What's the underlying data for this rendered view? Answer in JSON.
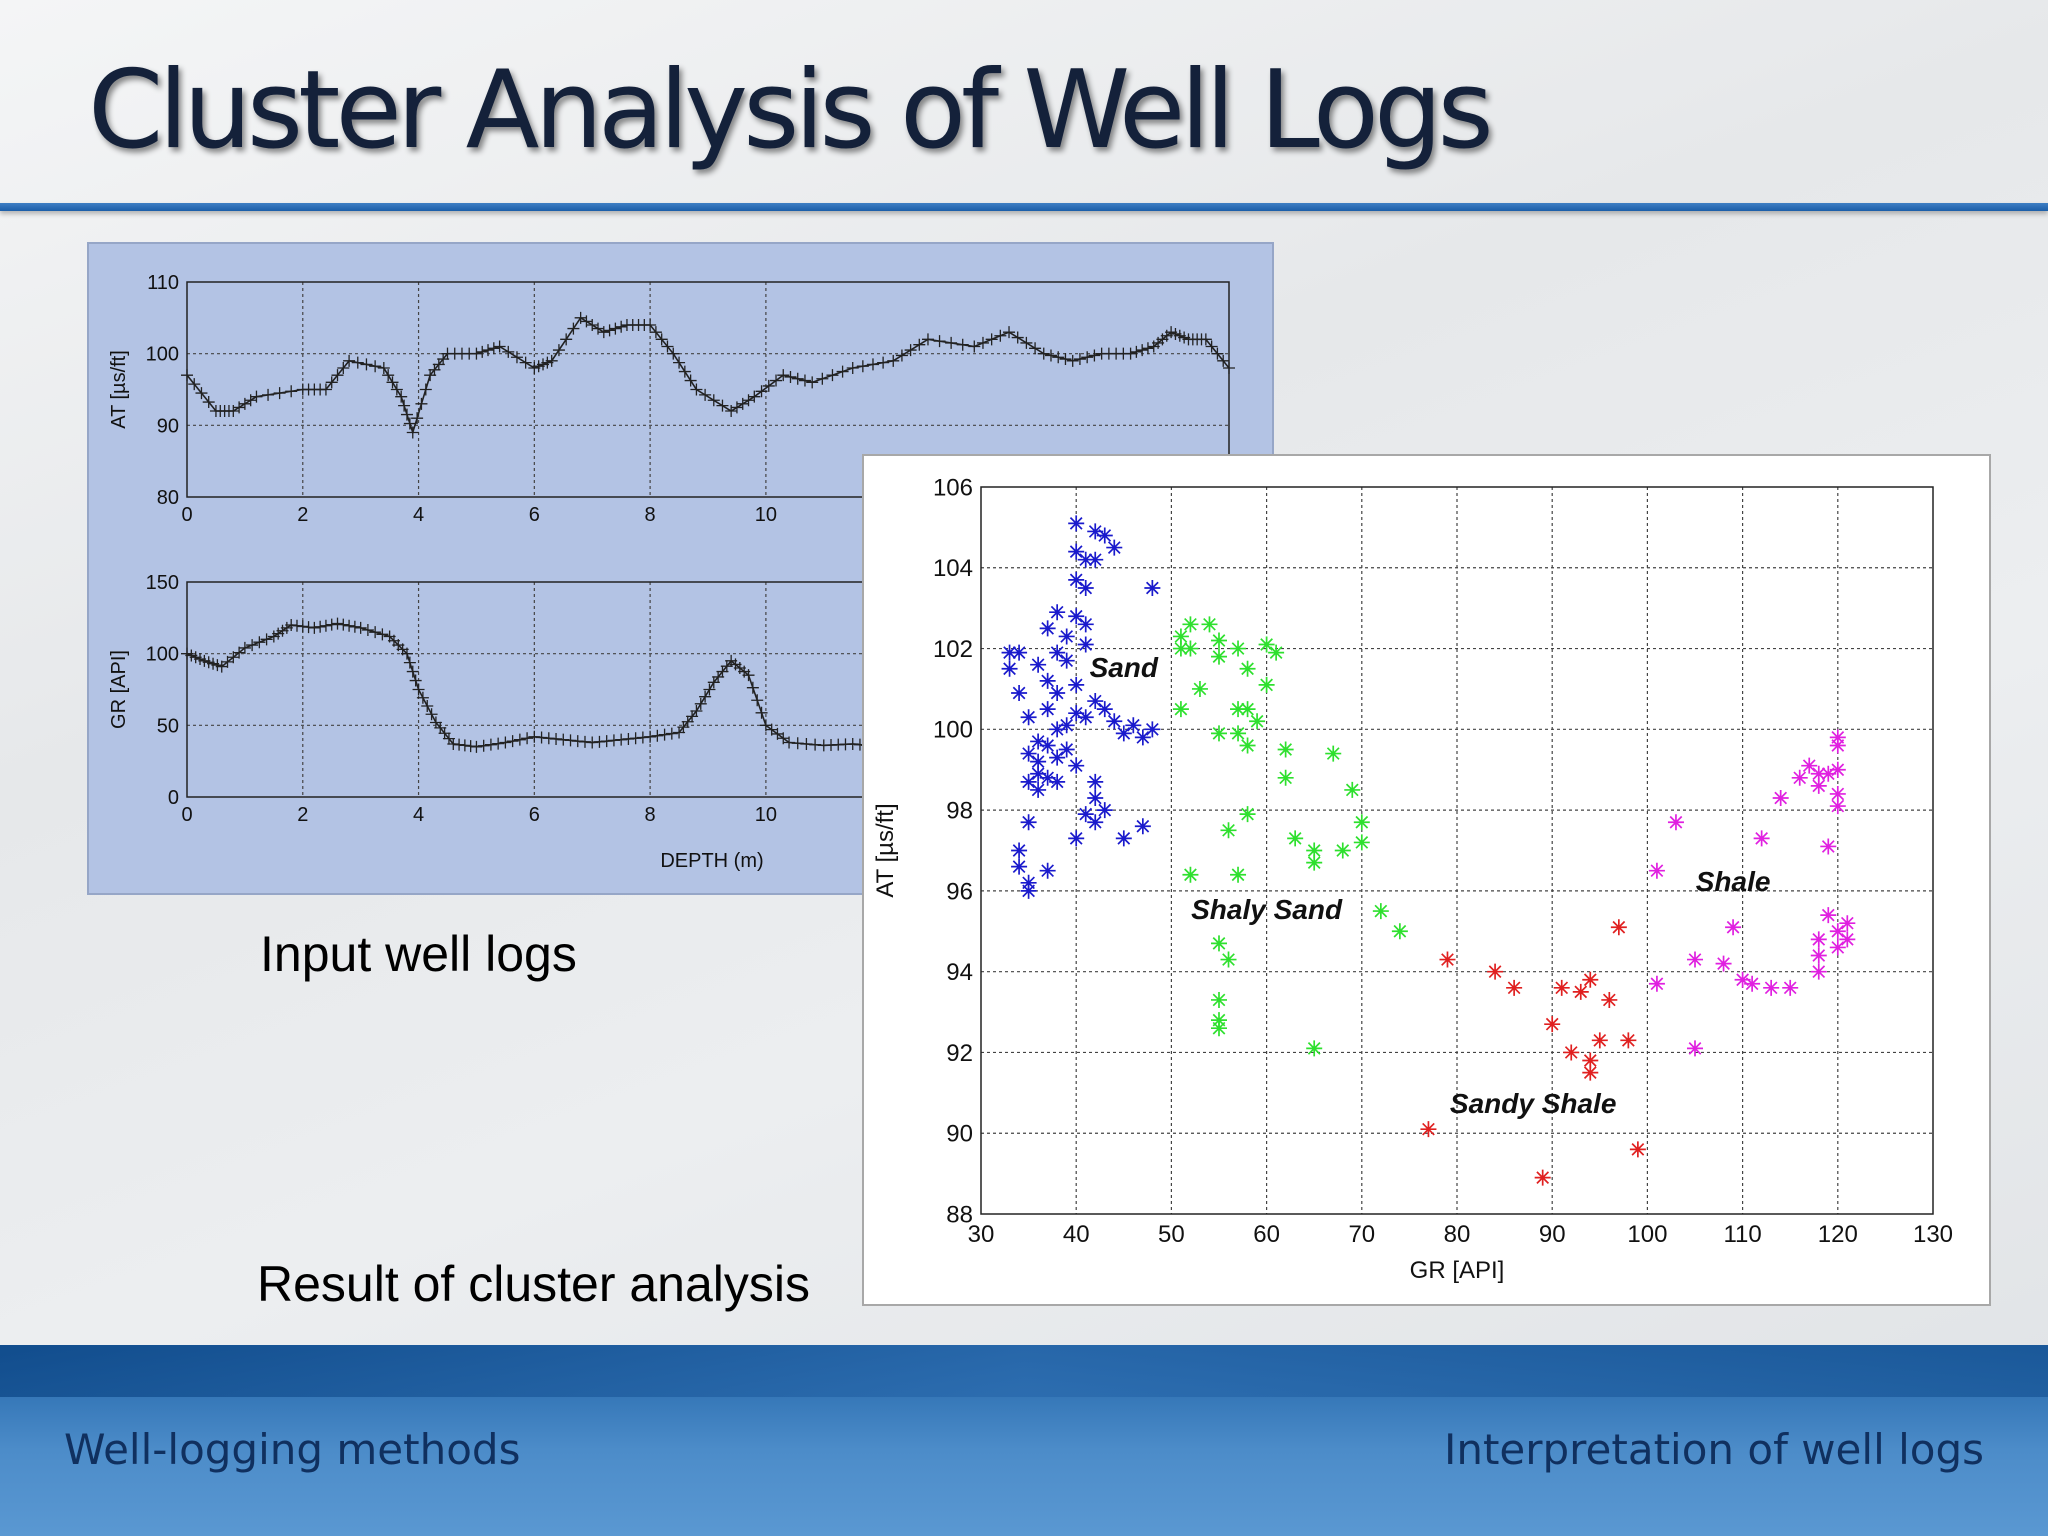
{
  "slide": {
    "title": "Cluster Analysis of Well Logs",
    "input_caption": "Input well logs",
    "result_caption": "Result of cluster analysis",
    "footer_left": "Well-logging methods",
    "footer_right": "Interpretation of well logs"
  },
  "chart_data": [
    {
      "type": "line",
      "ylabel": "AT [µs/ft]",
      "xlabel": "",
      "xlim": [
        0,
        18
      ],
      "ylim": [
        80,
        110
      ],
      "xticks": [
        0,
        2,
        4,
        6,
        8,
        10
      ],
      "yticks": [
        80,
        90,
        100,
        110
      ],
      "grid": true,
      "marker": "+",
      "x": [
        0,
        0.5,
        0.8,
        1.2,
        2.0,
        2.4,
        2.8,
        3.4,
        3.7,
        3.9,
        4.2,
        4.5,
        5.0,
        5.4,
        6.0,
        6.3,
        6.8,
        7.2,
        7.6,
        8.0,
        8.4,
        8.8,
        9.4,
        9.8,
        10.3,
        10.8,
        11.5,
        12.2,
        12.8,
        13.6,
        14.2,
        14.8,
        15.3,
        15.8,
        16.3,
        16.7,
        17.0,
        17.3,
        17.6,
        18.0
      ],
      "y": [
        97,
        92,
        92,
        94,
        95,
        95,
        99,
        98,
        94,
        89,
        97,
        100,
        100,
        101,
        98,
        99,
        105,
        103,
        104,
        104,
        100,
        95,
        92,
        94,
        97,
        96,
        98,
        99,
        102,
        101,
        103,
        100,
        99,
        100,
        100,
        101,
        103,
        102,
        102,
        98
      ]
    },
    {
      "type": "line",
      "ylabel": "GR [API]",
      "xlabel": "DEPTH (m)",
      "xlim": [
        0,
        18
      ],
      "ylim": [
        0,
        150
      ],
      "xticks": [
        0,
        2,
        4,
        6,
        8,
        10
      ],
      "yticks": [
        0,
        50,
        100,
        150
      ],
      "grid": true,
      "marker": "+",
      "x": [
        0,
        0.3,
        0.6,
        1.0,
        1.5,
        1.8,
        2.2,
        2.6,
        3.0,
        3.5,
        3.8,
        4.0,
        4.3,
        4.6,
        5.0,
        5.5,
        6.0,
        6.5,
        7.0,
        7.5,
        8.0,
        8.5,
        8.8,
        9.1,
        9.4,
        9.7,
        10.0,
        10.4,
        11.0,
        11.5,
        12.0
      ],
      "y": [
        100,
        95,
        91,
        104,
        112,
        120,
        118,
        121,
        118,
        112,
        100,
        75,
        52,
        37,
        35,
        38,
        42,
        40,
        38,
        40,
        42,
        45,
        60,
        80,
        95,
        85,
        50,
        38,
        36,
        37,
        35
      ]
    },
    {
      "type": "scatter",
      "title": "",
      "xlabel": "GR [API]",
      "ylabel": "AT [µs/ft]",
      "xlim": [
        30,
        130
      ],
      "ylim": [
        88,
        106
      ],
      "xticks": [
        30,
        40,
        50,
        60,
        70,
        80,
        90,
        100,
        110,
        120,
        130
      ],
      "yticks": [
        88,
        90,
        92,
        94,
        96,
        98,
        100,
        102,
        104,
        106
      ],
      "grid": true,
      "marker": "*",
      "series": [
        {
          "name": "Sand",
          "color": "#1a1acc",
          "points": [
            [
              40,
              105.1
            ],
            [
              40,
              104.4
            ],
            [
              42,
              104.9
            ],
            [
              43,
              104.8
            ],
            [
              44,
              104.5
            ],
            [
              41,
              104.2
            ],
            [
              42,
              104.2
            ],
            [
              40,
              103.7
            ],
            [
              41,
              103.5
            ],
            [
              48,
              103.5
            ],
            [
              38,
              102.9
            ],
            [
              40,
              102.8
            ],
            [
              41,
              102.6
            ],
            [
              37,
              102.5
            ],
            [
              39,
              102.3
            ],
            [
              34,
              101.9
            ],
            [
              33,
              101.9
            ],
            [
              38,
              101.9
            ],
            [
              41,
              102.1
            ],
            [
              39,
              101.7
            ],
            [
              33,
              101.5
            ],
            [
              36,
              101.6
            ],
            [
              37,
              101.2
            ],
            [
              38,
              100.9
            ],
            [
              40,
              101.1
            ],
            [
              42,
              100.7
            ],
            [
              34,
              100.9
            ],
            [
              43,
              100.5
            ],
            [
              37,
              100.5
            ],
            [
              40,
              100.4
            ],
            [
              35,
              100.3
            ],
            [
              44,
              100.2
            ],
            [
              38,
              100.0
            ],
            [
              39,
              100.1
            ],
            [
              41,
              100.3
            ],
            [
              46,
              100.1
            ],
            [
              48,
              100.0
            ],
            [
              45,
              99.9
            ],
            [
              47,
              99.8
            ],
            [
              36,
              99.7
            ],
            [
              37,
              99.6
            ],
            [
              39,
              99.5
            ],
            [
              35,
              99.4
            ],
            [
              36,
              99.2
            ],
            [
              38,
              99.3
            ],
            [
              40,
              99.1
            ],
            [
              36,
              98.9
            ],
            [
              37,
              98.8
            ],
            [
              35,
              98.7
            ],
            [
              38,
              98.7
            ],
            [
              42,
              98.7
            ],
            [
              36,
              98.5
            ],
            [
              42,
              98.3
            ],
            [
              43,
              98.0
            ],
            [
              41,
              97.9
            ],
            [
              42,
              97.7
            ],
            [
              47,
              97.6
            ],
            [
              35,
              97.7
            ],
            [
              40,
              97.3
            ],
            [
              45,
              97.3
            ],
            [
              34,
              97.0
            ],
            [
              34,
              96.6
            ],
            [
              37,
              96.5
            ],
            [
              35,
              96.2
            ],
            [
              35,
              96.0
            ]
          ]
        },
        {
          "name": "Shaly Sand",
          "color": "#2ee02e",
          "points": [
            [
              52,
              102.6
            ],
            [
              54,
              102.6
            ],
            [
              51,
              102.3
            ],
            [
              55,
              102.2
            ],
            [
              51,
              102.0
            ],
            [
              52,
              102.0
            ],
            [
              57,
              102.0
            ],
            [
              60,
              102.1
            ],
            [
              61,
              101.9
            ],
            [
              55,
              101.8
            ],
            [
              58,
              101.5
            ],
            [
              60,
              101.1
            ],
            [
              53,
              101.0
            ],
            [
              51,
              100.5
            ],
            [
              57,
              100.5
            ],
            [
              58,
              100.5
            ],
            [
              59,
              100.2
            ],
            [
              55,
              99.9
            ],
            [
              57,
              99.9
            ],
            [
              58,
              99.6
            ],
            [
              62,
              99.5
            ],
            [
              67,
              99.4
            ],
            [
              62,
              98.8
            ],
            [
              69,
              98.5
            ],
            [
              58,
              97.9
            ],
            [
              56,
              97.5
            ],
            [
              63,
              97.3
            ],
            [
              70,
              97.7
            ],
            [
              70,
              97.2
            ],
            [
              65,
              97.0
            ],
            [
              68,
              97.0
            ],
            [
              65,
              96.7
            ],
            [
              52,
              96.4
            ],
            [
              57,
              96.4
            ],
            [
              72,
              95.5
            ],
            [
              74,
              95.0
            ],
            [
              55,
              94.7
            ],
            [
              56,
              94.3
            ],
            [
              55,
              93.3
            ],
            [
              55,
              92.8
            ],
            [
              55,
              92.6
            ],
            [
              65,
              92.1
            ]
          ]
        },
        {
          "name": "Sandy Shale",
          "color": "#e02020",
          "points": [
            [
              97,
              95.1
            ],
            [
              79,
              94.3
            ],
            [
              84,
              94.0
            ],
            [
              86,
              93.6
            ],
            [
              91,
              93.6
            ],
            [
              94,
              93.8
            ],
            [
              93,
              93.5
            ],
            [
              96,
              93.3
            ],
            [
              90,
              92.7
            ],
            [
              95,
              92.3
            ],
            [
              98,
              92.3
            ],
            [
              92,
              92.0
            ],
            [
              94,
              91.8
            ],
            [
              94,
              91.5
            ],
            [
              77,
              90.1
            ],
            [
              99,
              89.6
            ],
            [
              89,
              88.9
            ]
          ]
        },
        {
          "name": "Shale",
          "color": "#e020e0",
          "points": [
            [
              120,
              99.8
            ],
            [
              120,
              99.6
            ],
            [
              117,
              99.1
            ],
            [
              118,
              98.9
            ],
            [
              119,
              98.9
            ],
            [
              120,
              99.0
            ],
            [
              116,
              98.8
            ],
            [
              118,
              98.6
            ],
            [
              114,
              98.3
            ],
            [
              120,
              98.4
            ],
            [
              120,
              98.1
            ],
            [
              103,
              97.7
            ],
            [
              112,
              97.3
            ],
            [
              119,
              97.1
            ],
            [
              101,
              96.5
            ],
            [
              119,
              95.4
            ],
            [
              121,
              95.2
            ],
            [
              120,
              95.0
            ],
            [
              109,
              95.1
            ],
            [
              121,
              94.8
            ],
            [
              118,
              94.8
            ],
            [
              120,
              94.6
            ],
            [
              118,
              94.4
            ],
            [
              105,
              94.3
            ],
            [
              108,
              94.2
            ],
            [
              118,
              94.0
            ],
            [
              110,
              93.8
            ],
            [
              111,
              93.7
            ],
            [
              113,
              93.6
            ],
            [
              115,
              93.6
            ],
            [
              101,
              93.7
            ],
            [
              105,
              92.1
            ]
          ]
        }
      ],
      "annotations": [
        {
          "text": "Sand",
          "x": 45,
          "y": 101.3
        },
        {
          "text": "Shaly Sand",
          "x": 60,
          "y": 95.3
        },
        {
          "text": "Shale",
          "x": 109,
          "y": 96.0
        },
        {
          "text": "Sandy Shale",
          "x": 88,
          "y": 90.5
        }
      ]
    }
  ]
}
